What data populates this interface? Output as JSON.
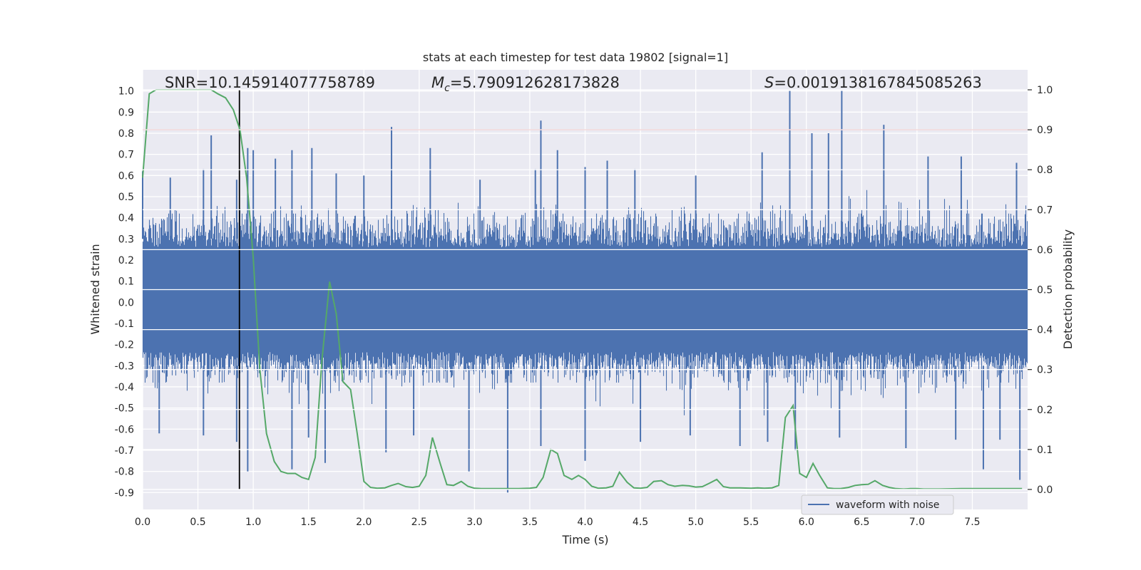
{
  "chart_data": {
    "type": "line",
    "title": "stats at each timestep for test data 19802 [signal=1]",
    "xlabel": "Time (s)",
    "ylabel_left": "Whitened strain",
    "ylabel_right": "Detection probability",
    "xlim": [
      0,
      8
    ],
    "ylim_left": [
      -0.98,
      1.1
    ],
    "ylim_right": [
      -0.05,
      1.05
    ],
    "x_ticks": [
      "0.0",
      "0.5",
      "1.0",
      "1.5",
      "2.0",
      "2.5",
      "3.0",
      "3.5",
      "4.0",
      "4.5",
      "5.0",
      "5.5",
      "6.0",
      "6.5",
      "7.0",
      "7.5"
    ],
    "y_ticks_left": [
      "1.0",
      "0.9",
      "0.8",
      "0.7",
      "0.6",
      "0.5",
      "0.4",
      "0.3",
      "0.2",
      "0.1",
      "0.0",
      "-0.1",
      "-0.2",
      "-0.3",
      "-0.4",
      "-0.5",
      "-0.6",
      "-0.7",
      "-0.8",
      "-0.9"
    ],
    "y_ticks_right": [
      "1.0",
      "0.9",
      "0.8",
      "0.7",
      "0.6",
      "0.5",
      "0.4",
      "0.3",
      "0.2",
      "0.1",
      "0.0"
    ],
    "annotations": {
      "snr": "SNR=10.145914077758789",
      "mc_symbol": "M",
      "mc_sub": "c",
      "mc_value": "=5.790912628173828",
      "s_symbol": "S",
      "s_value": "=0.0019138167845085263"
    },
    "threshold": {
      "value": 0.9,
      "axis": "right",
      "color": "#c44e52"
    },
    "marker_line": {
      "x": 0.875,
      "color": "#000000"
    },
    "legend": {
      "label": "waveform with noise",
      "placement": "lower-right"
    },
    "grid": true,
    "colors": {
      "waveform": "#4c72b0",
      "probability": "#55a868",
      "background": "#eaeaf2"
    },
    "series": [
      {
        "name": "waveform with noise",
        "axis": "left",
        "sample_rate_hz": 1024,
        "envelope_max": 0.42,
        "envelope_min": -0.38,
        "peaks": [
          [
            0.0,
            0.62
          ],
          [
            0.25,
            0.59
          ],
          [
            0.55,
            0.63
          ],
          [
            0.62,
            0.79
          ],
          [
            0.85,
            0.58
          ],
          [
            0.95,
            0.73
          ],
          [
            1.0,
            0.72
          ],
          [
            1.2,
            0.68
          ],
          [
            1.35,
            0.72
          ],
          [
            1.53,
            0.73
          ],
          [
            1.75,
            0.61
          ],
          [
            2.0,
            0.6
          ],
          [
            2.25,
            0.83
          ],
          [
            2.6,
            0.73
          ],
          [
            3.05,
            0.58
          ],
          [
            3.55,
            0.63
          ],
          [
            3.6,
            0.86
          ],
          [
            3.75,
            0.72
          ],
          [
            4.0,
            0.64
          ],
          [
            4.2,
            0.67
          ],
          [
            4.45,
            0.63
          ],
          [
            5.0,
            0.6
          ],
          [
            5.6,
            0.71
          ],
          [
            5.85,
            1.0
          ],
          [
            6.05,
            0.8
          ],
          [
            6.2,
            0.8
          ],
          [
            6.32,
            1.0
          ],
          [
            6.7,
            0.84
          ],
          [
            7.1,
            0.69
          ],
          [
            7.4,
            0.69
          ],
          [
            7.9,
            0.66
          ]
        ],
        "troughs": [
          [
            0.15,
            -0.62
          ],
          [
            0.55,
            -0.63
          ],
          [
            0.85,
            -0.66
          ],
          [
            0.95,
            -0.8
          ],
          [
            1.35,
            -0.79
          ],
          [
            1.5,
            -0.64
          ],
          [
            1.65,
            -0.76
          ],
          [
            2.2,
            -0.71
          ],
          [
            2.45,
            -0.63
          ],
          [
            2.95,
            -0.8
          ],
          [
            3.3,
            -0.9
          ],
          [
            3.6,
            -0.68
          ],
          [
            4.0,
            -0.75
          ],
          [
            4.5,
            -0.66
          ],
          [
            4.95,
            -0.63
          ],
          [
            5.4,
            -0.68
          ],
          [
            5.65,
            -0.66
          ],
          [
            5.9,
            -0.7
          ],
          [
            6.3,
            -0.64
          ],
          [
            6.9,
            -0.69
          ],
          [
            7.35,
            -0.65
          ],
          [
            7.6,
            -0.79
          ],
          [
            7.75,
            -0.65
          ],
          [
            7.93,
            -0.84
          ]
        ]
      },
      {
        "name": "",
        "axis": "right",
        "x": [
          0.0,
          0.06,
          0.12,
          0.18,
          0.25,
          0.4,
          0.55,
          0.62,
          0.68,
          0.75,
          0.82,
          0.88,
          0.94,
          1.0,
          1.06,
          1.12,
          1.19,
          1.25,
          1.31,
          1.38,
          1.44,
          1.5,
          1.56,
          1.62,
          1.69,
          1.75,
          1.81,
          1.88,
          1.94,
          2.0,
          2.06,
          2.12,
          2.19,
          2.25,
          2.31,
          2.38,
          2.44,
          2.5,
          2.56,
          2.62,
          2.69,
          2.75,
          2.81,
          2.88,
          2.94,
          3.0,
          3.06,
          3.2,
          3.4,
          3.5,
          3.56,
          3.62,
          3.69,
          3.75,
          3.81,
          3.88,
          3.94,
          4.0,
          4.06,
          4.12,
          4.19,
          4.25,
          4.31,
          4.38,
          4.44,
          4.5,
          4.56,
          4.62,
          4.69,
          4.75,
          4.81,
          4.88,
          4.94,
          5.0,
          5.06,
          5.12,
          5.19,
          5.25,
          5.31,
          5.4,
          5.5,
          5.56,
          5.62,
          5.69,
          5.75,
          5.81,
          5.88,
          5.94,
          6.0,
          6.06,
          6.12,
          6.19,
          6.25,
          6.31,
          6.38,
          6.44,
          6.5,
          6.56,
          6.62,
          6.69,
          6.75,
          6.81,
          6.88,
          6.94,
          7.0,
          7.06,
          7.12,
          7.2,
          7.4,
          7.6,
          7.8,
          7.95
        ],
        "values": [
          0.78,
          0.99,
          1.0,
          1.0,
          1.0,
          1.0,
          1.0,
          1.0,
          0.99,
          0.98,
          0.95,
          0.9,
          0.78,
          0.58,
          0.3,
          0.14,
          0.07,
          0.045,
          0.04,
          0.04,
          0.03,
          0.025,
          0.08,
          0.32,
          0.52,
          0.44,
          0.27,
          0.25,
          0.14,
          0.02,
          0.005,
          0.003,
          0.004,
          0.01,
          0.015,
          0.007,
          0.005,
          0.008,
          0.035,
          0.13,
          0.065,
          0.012,
          0.01,
          0.02,
          0.008,
          0.003,
          0.002,
          0.002,
          0.002,
          0.003,
          0.005,
          0.03,
          0.1,
          0.09,
          0.035,
          0.025,
          0.035,
          0.025,
          0.008,
          0.003,
          0.004,
          0.008,
          0.043,
          0.018,
          0.004,
          0.003,
          0.005,
          0.02,
          0.022,
          0.012,
          0.008,
          0.01,
          0.009,
          0.006,
          0.007,
          0.015,
          0.025,
          0.007,
          0.004,
          0.004,
          0.003,
          0.004,
          0.003,
          0.004,
          0.01,
          0.18,
          0.21,
          0.04,
          0.03,
          0.065,
          0.035,
          0.004,
          0.002,
          0.002,
          0.005,
          0.01,
          0.012,
          0.013,
          0.022,
          0.01,
          0.005,
          0.002,
          0.001,
          0.002,
          0.002,
          0.001,
          0.001,
          0.001,
          0.002,
          0.002,
          0.002,
          0.002
        ]
      }
    ]
  }
}
